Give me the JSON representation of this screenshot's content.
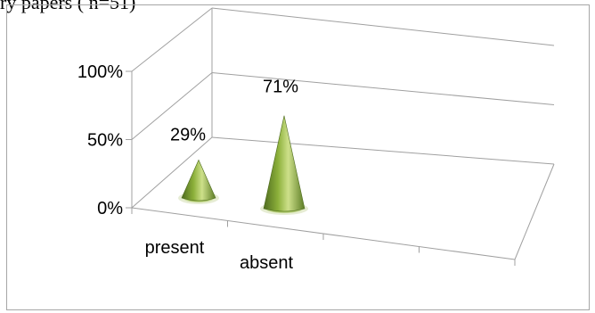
{
  "clipped_caption": "ry papers ( n=51)",
  "colors": {
    "cone_dark": "#4e6b1f",
    "cone_mid": "#8cb03a",
    "cone_light": "#cde08a",
    "grid_line": "#a0a0a0",
    "frame": "#a6a6a6"
  },
  "chart_data": {
    "type": "bar",
    "bar_shape": "cone",
    "style": "3d",
    "categories": [
      "present",
      "absent"
    ],
    "values": [
      29,
      71
    ],
    "data_labels": [
      "29%",
      "71%"
    ],
    "y_ticks": [
      "0%",
      "50%",
      "100%"
    ],
    "ylim": [
      0,
      100
    ],
    "y_unit": "%",
    "grid": true,
    "legend": "none",
    "title": "",
    "xlabel": "",
    "ylabel": ""
  }
}
